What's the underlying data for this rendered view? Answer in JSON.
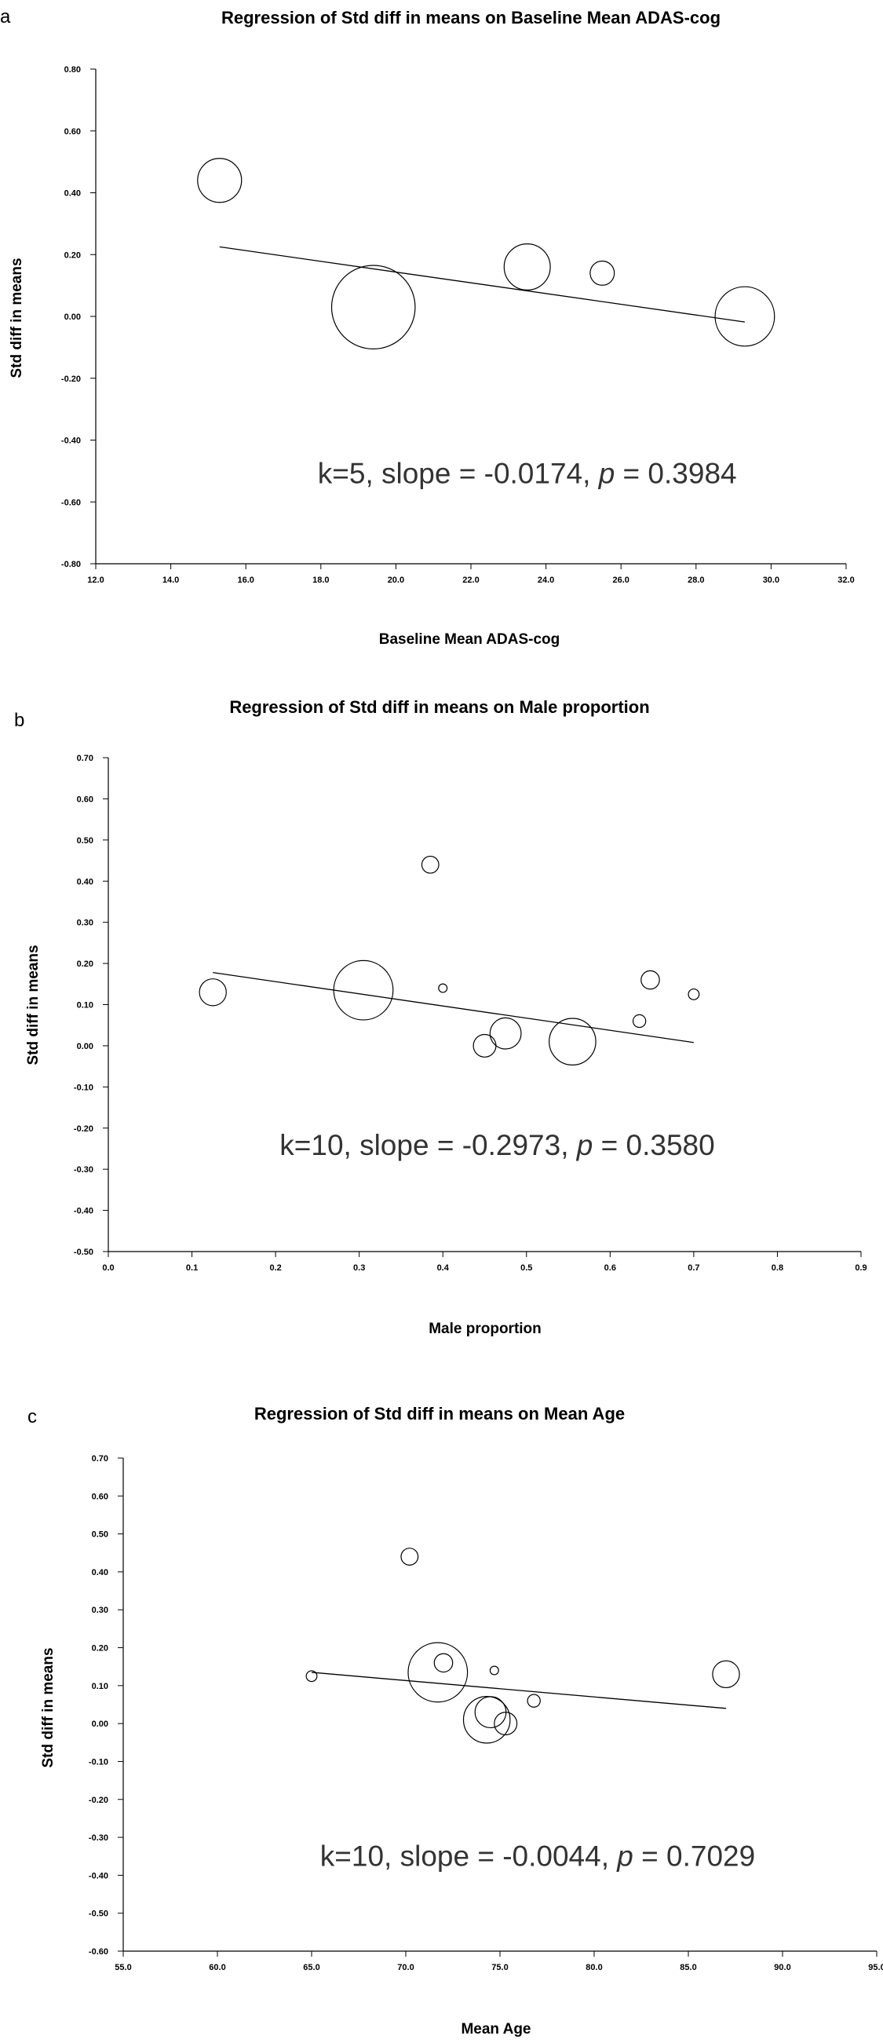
{
  "chart_data": [
    {
      "type": "scatter",
      "panel": "a",
      "title": "Regression of Std diff in means on Baseline Mean ADAS-cog",
      "xlabel": "Baseline Mean ADAS-cog",
      "ylabel": "Std diff in means",
      "xlim": [
        12.0,
        32.0
      ],
      "ylim": [
        -0.8,
        0.8
      ],
      "x_ticks": [
        12.0,
        14.0,
        16.0,
        18.0,
        20.0,
        22.0,
        24.0,
        26.0,
        28.0,
        30.0,
        32.0
      ],
      "y_ticks": [
        -0.8,
        -0.6,
        -0.4,
        -0.2,
        0.0,
        0.2,
        0.4,
        0.6,
        0.8
      ],
      "tick_decimals_x": 1,
      "tick_decimals_y": 2,
      "points": [
        {
          "x": 15.3,
          "y": 0.44,
          "size": 1.0
        },
        {
          "x": 19.4,
          "y": 0.03,
          "size": 1.9
        },
        {
          "x": 23.5,
          "y": 0.16,
          "size": 1.05
        },
        {
          "x": 25.5,
          "y": 0.14,
          "size": 0.55
        },
        {
          "x": 29.3,
          "y": 0.0,
          "size": 1.35
        }
      ],
      "regression_line": {
        "x": [
          15.3,
          29.3
        ],
        "y": [
          0.225,
          -0.018
        ]
      },
      "annotation": {
        "prefix": "k=5, slope = -0.0174, ",
        "p_symbol": "p",
        "suffix": " = 0.3984",
        "x": 23.5,
        "y": -0.54
      }
    },
    {
      "type": "scatter",
      "panel": "b",
      "title": "Regression of Std diff in means on Male proportion",
      "xlabel": "Male proportion",
      "ylabel": "Std diff in means",
      "xlim": [
        0.0,
        0.9
      ],
      "ylim": [
        -0.5,
        0.7
      ],
      "x_ticks": [
        0.0,
        0.1,
        0.2,
        0.3,
        0.4,
        0.5,
        0.6,
        0.7,
        0.8,
        0.9
      ],
      "y_ticks": [
        -0.5,
        -0.4,
        -0.3,
        -0.2,
        -0.1,
        0.0,
        0.1,
        0.2,
        0.3,
        0.4,
        0.5,
        0.6,
        0.7
      ],
      "tick_decimals_x": 1,
      "tick_decimals_y": 2,
      "points": [
        {
          "x": 0.125,
          "y": 0.13,
          "size": 0.95
        },
        {
          "x": 0.305,
          "y": 0.135,
          "size": 2.1
        },
        {
          "x": 0.385,
          "y": 0.44,
          "size": 0.6
        },
        {
          "x": 0.4,
          "y": 0.14,
          "size": 0.3
        },
        {
          "x": 0.45,
          "y": 0.0,
          "size": 0.8
        },
        {
          "x": 0.475,
          "y": 0.03,
          "size": 1.1
        },
        {
          "x": 0.555,
          "y": 0.01,
          "size": 1.65
        },
        {
          "x": 0.635,
          "y": 0.06,
          "size": 0.45
        },
        {
          "x": 0.648,
          "y": 0.16,
          "size": 0.65
        },
        {
          "x": 0.7,
          "y": 0.125,
          "size": 0.38
        }
      ],
      "regression_line": {
        "x": [
          0.125,
          0.7
        ],
        "y": [
          0.178,
          0.008
        ]
      },
      "annotation": {
        "prefix": "k=10, slope = -0.2973, ",
        "p_symbol": "p",
        "suffix": " = 0.3580",
        "x": 0.465,
        "y": -0.265
      }
    },
    {
      "type": "scatter",
      "panel": "c",
      "title": "Regression of Std diff in means on Mean Age",
      "xlabel": "Mean Age",
      "ylabel": "Std diff in means",
      "xlim": [
        55.0,
        95.0
      ],
      "ylim": [
        -0.6,
        0.7
      ],
      "x_ticks": [
        55.0,
        60.0,
        65.0,
        70.0,
        75.0,
        80.0,
        85.0,
        90.0,
        95.0
      ],
      "y_ticks": [
        -0.6,
        -0.5,
        -0.4,
        -0.3,
        -0.2,
        -0.1,
        0.0,
        0.1,
        0.2,
        0.3,
        0.4,
        0.5,
        0.6,
        0.7
      ],
      "tick_decimals_x": 1,
      "tick_decimals_y": 2,
      "points": [
        {
          "x": 65.0,
          "y": 0.125,
          "size": 0.38
        },
        {
          "x": 70.2,
          "y": 0.44,
          "size": 0.6
        },
        {
          "x": 71.7,
          "y": 0.135,
          "size": 2.1
        },
        {
          "x": 72.0,
          "y": 0.16,
          "size": 0.65
        },
        {
          "x": 74.3,
          "y": 0.01,
          "size": 1.65
        },
        {
          "x": 74.5,
          "y": 0.03,
          "size": 1.1
        },
        {
          "x": 74.7,
          "y": 0.14,
          "size": 0.3
        },
        {
          "x": 75.3,
          "y": 0.0,
          "size": 0.8
        },
        {
          "x": 76.8,
          "y": 0.06,
          "size": 0.45
        },
        {
          "x": 87.0,
          "y": 0.13,
          "size": 0.95
        }
      ],
      "regression_line": {
        "x": [
          65.0,
          87.0
        ],
        "y": [
          0.135,
          0.04
        ]
      },
      "annotation": {
        "prefix": "k=10, slope = -0.0044, ",
        "p_symbol": "p",
        "suffix": " = 0.7029",
        "x": 77.0,
        "y": -0.375
      }
    }
  ]
}
